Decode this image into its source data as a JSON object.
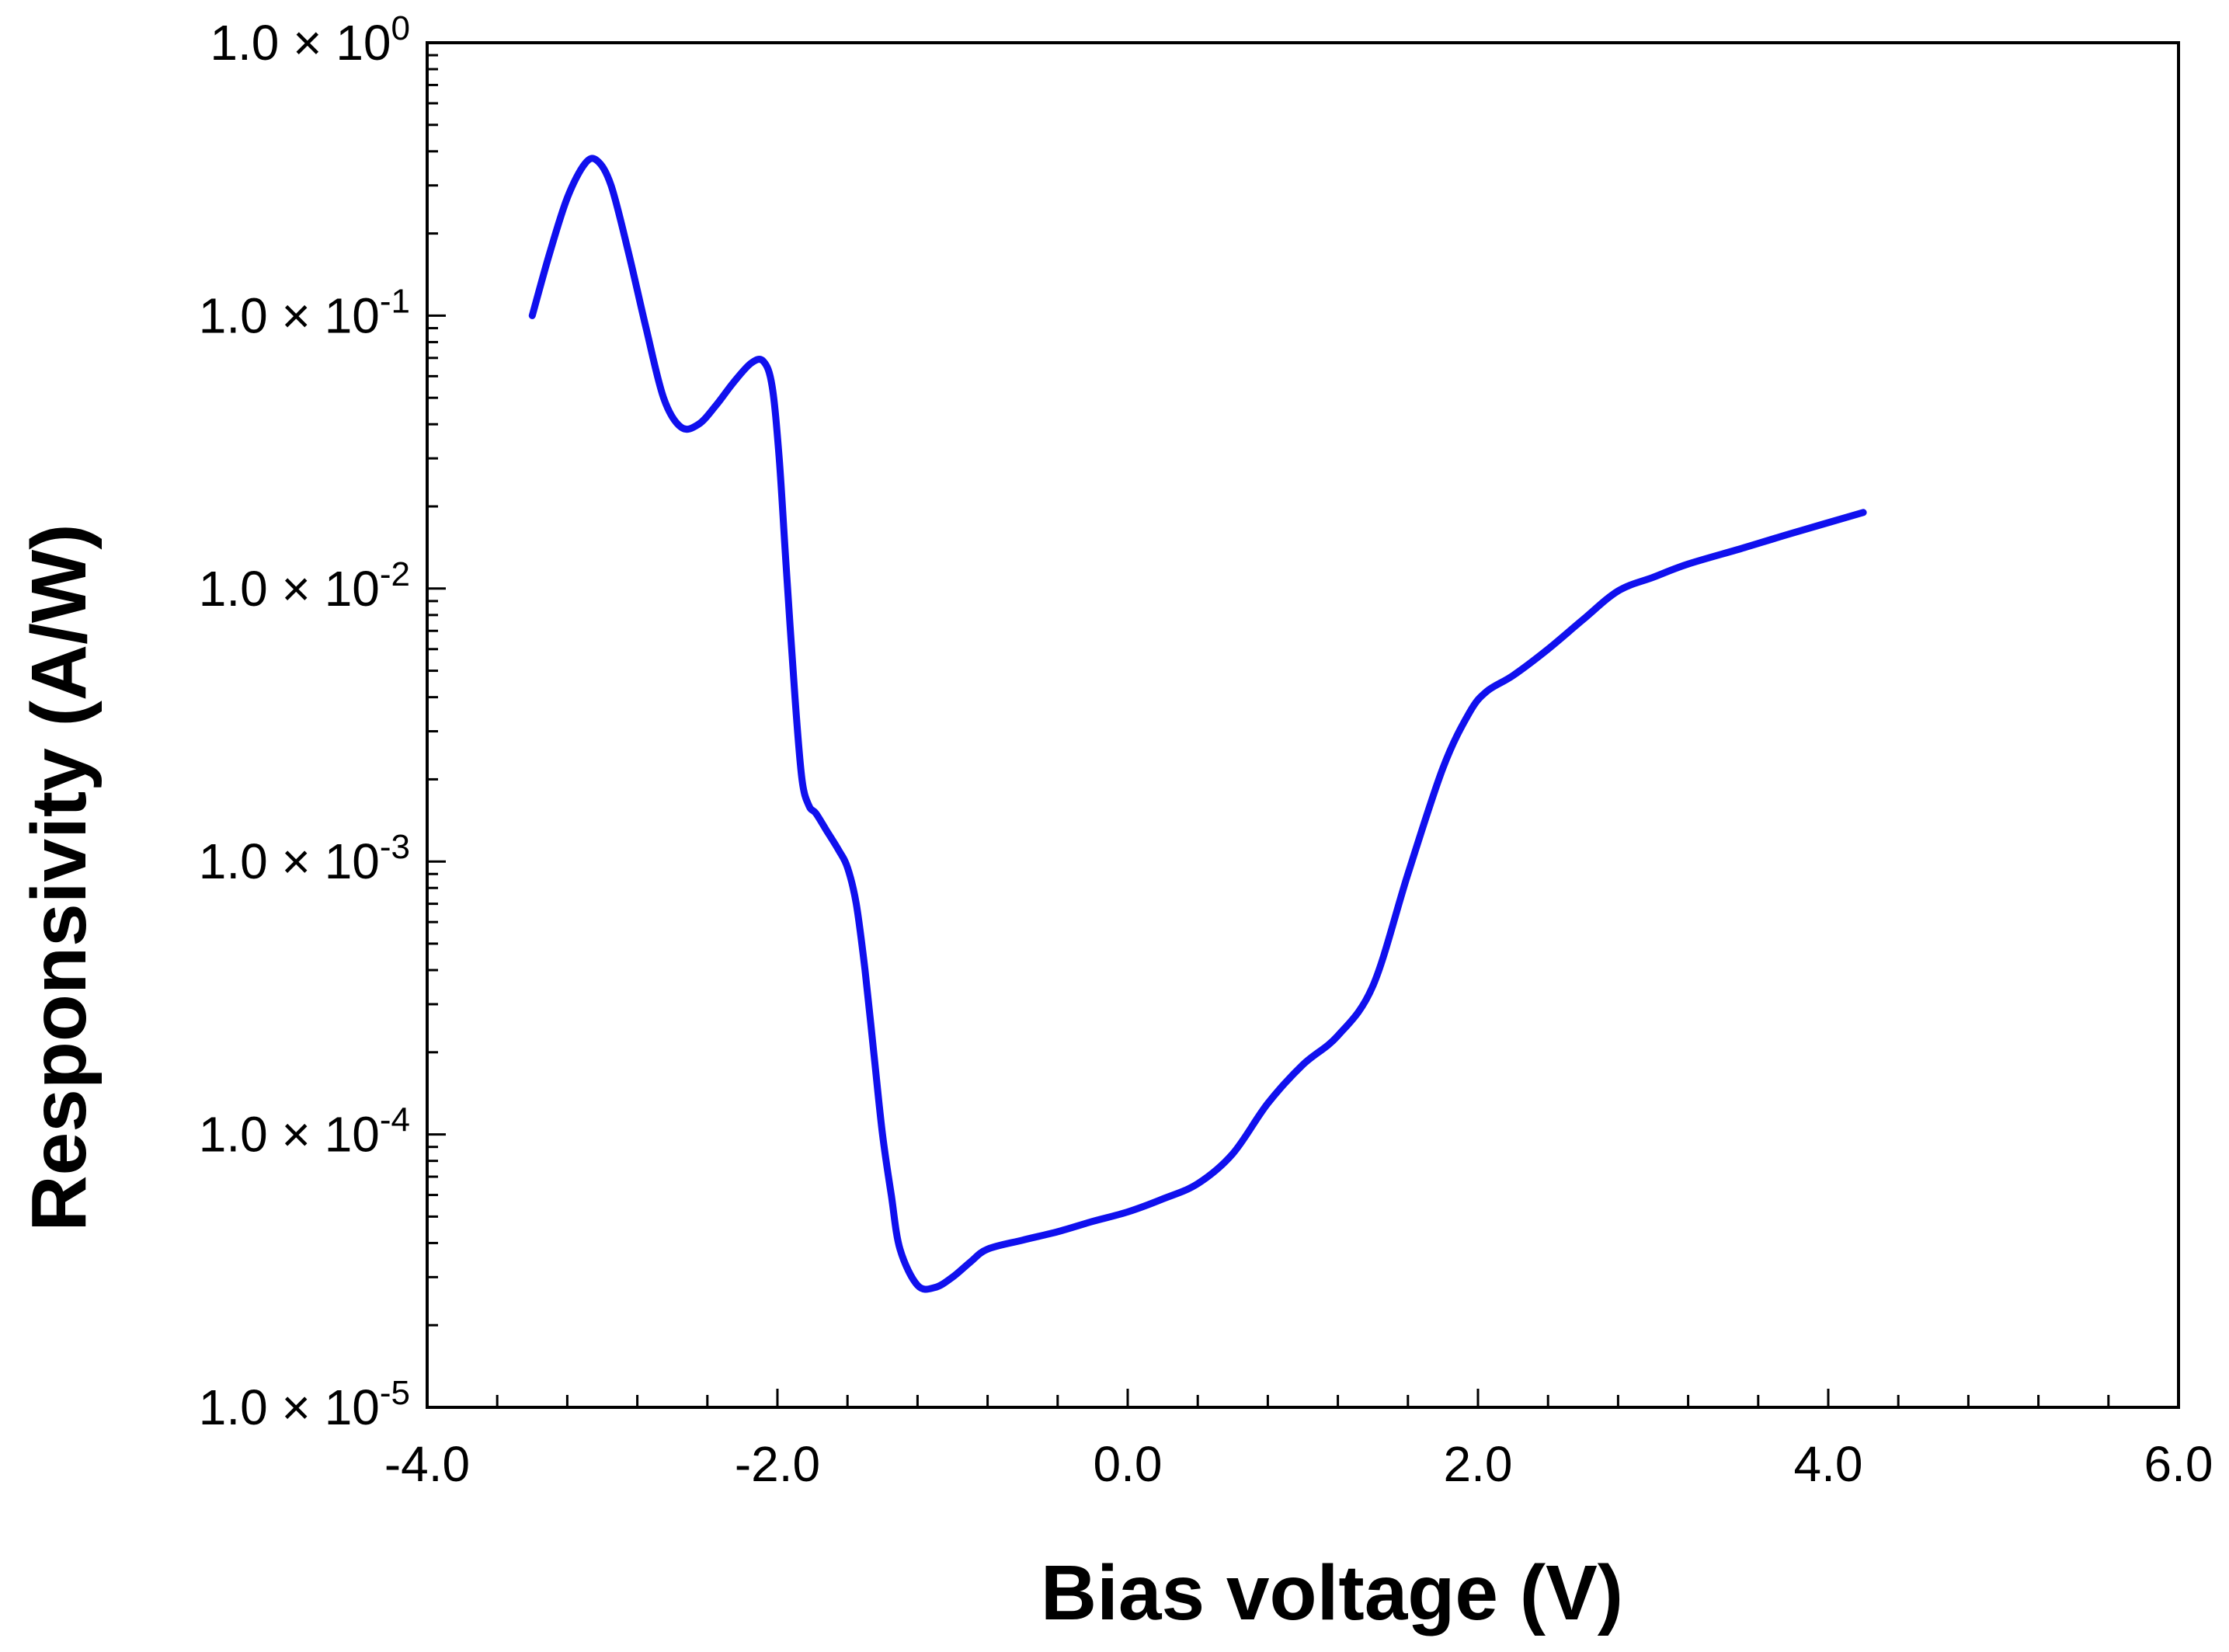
{
  "chart_data": {
    "type": "line",
    "title": "",
    "xlabel": "Bias voltage (V)",
    "ylabel": "Responsivity (A/W)",
    "x_scale": "linear",
    "y_scale": "log",
    "xlim": [
      -4.0,
      6.0
    ],
    "ylim": [
      1e-05,
      1.0
    ],
    "x_ticks": [
      -4.0,
      -2.0,
      0.0,
      2.0,
      4.0,
      6.0
    ],
    "x_tick_labels": [
      "-4.0",
      "-2.0",
      "0.0",
      "2.0",
      "4.0",
      "6.0"
    ],
    "y_ticks": [
      1e-05,
      0.0001,
      0.001,
      0.01,
      0.1,
      1.0
    ],
    "y_tick_labels": [
      {
        "mantissa": "1.0 × 10",
        "exponent": "-5"
      },
      {
        "mantissa": "1.0 × 10",
        "exponent": "-4"
      },
      {
        "mantissa": "1.0 × 10",
        "exponent": "-3"
      },
      {
        "mantissa": "1.0 × 10",
        "exponent": "-2"
      },
      {
        "mantissa": "1.0 × 10",
        "exponent": "-1"
      },
      {
        "mantissa": "1.0 × 10",
        "exponent": "0"
      }
    ],
    "grid": false,
    "colors": {
      "line": "#1010ee",
      "axes": "#000000"
    },
    "series": [
      {
        "x": [
          -3.4,
          -3.3,
          -3.2,
          -3.1,
          -3.03,
          -2.95,
          -2.85,
          -2.75,
          -2.65,
          -2.55,
          -2.45,
          -2.35,
          -2.25,
          -2.15,
          -2.08,
          -2.03,
          -1.99,
          -1.95,
          -1.9,
          -1.86,
          -1.82,
          -1.78,
          -1.72,
          -1.65,
          -1.6,
          -1.55,
          -1.5,
          -1.45,
          -1.4,
          -1.35,
          -1.3,
          -1.2,
          -1.1,
          -1.0,
          -0.9,
          -0.8,
          -0.6,
          -0.4,
          -0.2,
          0.0,
          0.2,
          0.4,
          0.6,
          0.8,
          1.0,
          1.2,
          1.4,
          1.6,
          1.8,
          1.95,
          2.05,
          2.2,
          2.4,
          2.6,
          2.8,
          3.0,
          3.2,
          3.5,
          3.8,
          4.2
        ],
        "y": [
          0.1,
          0.17,
          0.27,
          0.36,
          0.37,
          0.3,
          0.17,
          0.09,
          0.05,
          0.039,
          0.04,
          0.047,
          0.057,
          0.067,
          0.068,
          0.055,
          0.03,
          0.012,
          0.004,
          0.002,
          0.0016,
          0.0015,
          0.0013,
          0.0011,
          0.00095,
          0.0007,
          0.0004,
          0.0002,
          0.0001,
          6e-05,
          3.8e-05,
          2.8e-05,
          2.75e-05,
          3e-05,
          3.4e-05,
          3.8e-05,
          4.1e-05,
          4.4e-05,
          4.8e-05,
          5.2e-05,
          5.8e-05,
          6.6e-05,
          8.5e-05,
          0.00013,
          0.00018,
          0.00023,
          0.00035,
          0.0009,
          0.0022,
          0.0035,
          0.0042,
          0.0048,
          0.006,
          0.0077,
          0.0098,
          0.011,
          0.0123,
          0.014,
          0.016,
          0.019
        ]
      }
    ]
  }
}
